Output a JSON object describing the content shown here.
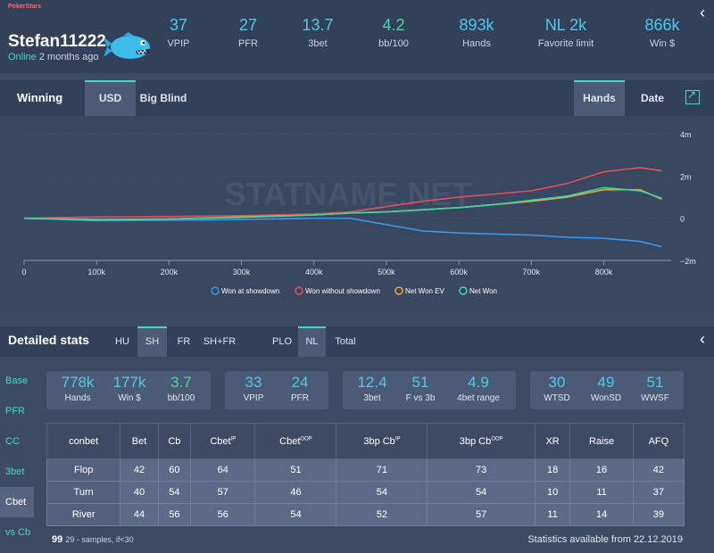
{
  "header": {
    "brand": "PokerStars",
    "username": "Stefan11222",
    "online_label": "Online",
    "last_seen": "2 months ago",
    "stats": [
      {
        "value": "37",
        "label": "VPIP"
      },
      {
        "value": "27",
        "label": "PFR"
      },
      {
        "value": "13.7",
        "label": "3bet"
      },
      {
        "value": "4.2",
        "label": "bb/100"
      },
      {
        "value": "893k",
        "label": "Hands"
      },
      {
        "value": "NL 2k",
        "label": "Favorite limit"
      },
      {
        "value": "866k",
        "label": "Win $"
      }
    ]
  },
  "winning": {
    "title": "Winning",
    "units_tabs": [
      "USD",
      "Big Blind"
    ],
    "axis_tabs": [
      "Hands",
      "Date"
    ]
  },
  "watermark": "STATNAME.NET",
  "chart_data": {
    "type": "line",
    "x_ticks": [
      "0",
      "100k",
      "200k",
      "300k",
      "400k",
      "500k",
      "600k",
      "700k",
      "800k"
    ],
    "y_ticks": [
      "4m",
      "2m",
      "0",
      "−2m"
    ],
    "xlim": [
      0,
      893000
    ],
    "ylim": [
      -2000000,
      4000000
    ],
    "x": [
      0,
      100000,
      200000,
      300000,
      400000,
      450000,
      500000,
      550000,
      600000,
      650000,
      700000,
      750000,
      800000,
      850000,
      880000
    ],
    "series": [
      {
        "name": "Won at showdown",
        "color": "#3d96e6",
        "values": [
          0,
          -120000,
          -100000,
          -60000,
          0,
          0,
          -300000,
          -600000,
          -700000,
          -750000,
          -800000,
          -900000,
          -950000,
          -1100000,
          -1350000
        ]
      },
      {
        "name": "Won without showdown",
        "color": "#e0505a",
        "values": [
          0,
          60000,
          80000,
          120000,
          200000,
          300000,
          550000,
          800000,
          1000000,
          1150000,
          1300000,
          1650000,
          2200000,
          2400000,
          2250000
        ]
      },
      {
        "name": "Net Won EV",
        "color": "#e8a53d",
        "values": [
          0,
          -60000,
          -40000,
          60000,
          150000,
          250000,
          300000,
          400000,
          500000,
          650000,
          800000,
          1000000,
          1350000,
          1350000,
          900000
        ]
      },
      {
        "name": "Net Won",
        "color": "#3dd6a0",
        "values": [
          0,
          -80000,
          -40000,
          40000,
          150000,
          250000,
          300000,
          400000,
          500000,
          650000,
          850000,
          1050000,
          1450000,
          1300000,
          950000
        ]
      }
    ]
  },
  "detailed": {
    "title": "Detailed stats",
    "filters": [
      "HU",
      "SH",
      "FR",
      "SH+FR",
      "PLO",
      "NL",
      "Total"
    ],
    "side_tabs": [
      "Base",
      "PFR",
      "CC",
      "3bet",
      "Cbet",
      "vs Cb"
    ],
    "boxes": [
      [
        {
          "value": "778k",
          "label": "Hands"
        },
        {
          "value": "177k",
          "label": "Win $"
        },
        {
          "value": "3.7",
          "label": "bb/100"
        }
      ],
      [
        {
          "value": "33",
          "label": "VPIP"
        },
        {
          "value": "24",
          "label": "PFR"
        }
      ],
      [
        {
          "value": "12.4",
          "label": "3bet"
        },
        {
          "value": "51",
          "label": "F vs 3b"
        },
        {
          "value": "4.9",
          "label": "4bet range"
        }
      ],
      [
        {
          "value": "30",
          "label": "WTSD"
        },
        {
          "value": "49",
          "label": "WonSD"
        },
        {
          "value": "51",
          "label": "WWSF"
        }
      ]
    ],
    "table": {
      "headers": [
        {
          "label": "conbet",
          "sup": ""
        },
        {
          "label": "Bet",
          "sup": ""
        },
        {
          "label": "Cb",
          "sup": ""
        },
        {
          "label": "Cbet",
          "sup": "IP"
        },
        {
          "label": "Cbet",
          "sup": "OOP"
        },
        {
          "label": "3bp Cb",
          "sup": "IP"
        },
        {
          "label": "3bp Cb",
          "sup": "OOP"
        },
        {
          "label": "XR",
          "sup": ""
        },
        {
          "label": "Raise",
          "sup": ""
        },
        {
          "label": "AFQ",
          "sup": ""
        }
      ],
      "rows": [
        [
          "Flop",
          "42",
          "60",
          "64",
          "51",
          "71",
          "73",
          "18",
          "16",
          "42"
        ],
        [
          "Turn",
          "40",
          "54",
          "57",
          "46",
          "54",
          "54",
          "10",
          "11",
          "37"
        ],
        [
          "River",
          "44",
          "56",
          "56",
          "54",
          "52",
          "57",
          "11",
          "14",
          "39"
        ]
      ]
    },
    "footer_value": "99",
    "footer_note": "29 - samples, if<30",
    "footer_right": "Statistics available from 22.12.2019"
  },
  "colors": {
    "accent": "#46d7c3",
    "value_blue": "#4fc8e8",
    "value_green": "#4ad6a0"
  }
}
